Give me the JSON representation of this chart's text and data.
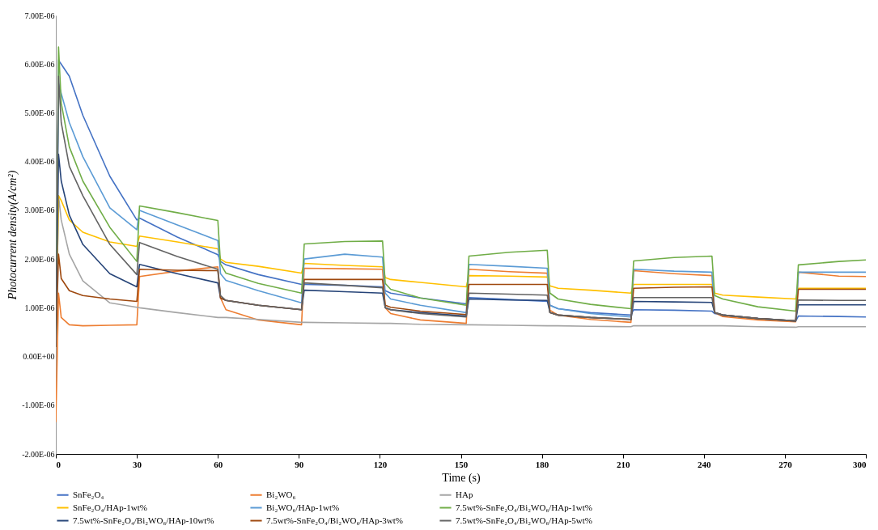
{
  "chart_data": {
    "type": "line",
    "xlabel": "Time (s)",
    "ylabel": "Photocurrent density(A/cm²)",
    "x": [
      0,
      1,
      2,
      5,
      10,
      20,
      30,
      31,
      45,
      60,
      61,
      63,
      75,
      91,
      92,
      107,
      121,
      122,
      124,
      135,
      152,
      153,
      168,
      182,
      183,
      186,
      198,
      213,
      214,
      229,
      243,
      244,
      247,
      260,
      274,
      275,
      290,
      300
    ],
    "xlim": [
      0,
      300
    ],
    "xticks": [
      0,
      30,
      60,
      90,
      120,
      150,
      180,
      210,
      240,
      270,
      300
    ],
    "ylim": [
      -2e-06,
      7e-06
    ],
    "yticks": [
      {
        "value": -2e-06,
        "label": "-2.00E-06"
      },
      {
        "value": -1e-06,
        "label": "-1.00E-06"
      },
      {
        "value": 0,
        "label": "0.00E+00"
      },
      {
        "value": 1e-06,
        "label": "1.00E-06"
      },
      {
        "value": 2e-06,
        "label": "2.00E-06"
      },
      {
        "value": 3e-06,
        "label": "3.00E-06"
      },
      {
        "value": 4e-06,
        "label": "4.00E-06"
      },
      {
        "value": 5e-06,
        "label": "5.00E-06"
      },
      {
        "value": 6e-06,
        "label": "6.00E-06"
      },
      {
        "value": 7e-06,
        "label": "7.00E-06"
      }
    ],
    "grid": false,
    "legend": "bottom",
    "marker": "none",
    "line_style": "solid",
    "series": [
      {
        "name": "SnFe₂O₄",
        "color": "#4472c4",
        "values": [
          2e-07,
          6.08e-06,
          6e-06,
          5.75e-06,
          4.95e-06,
          3.7e-06,
          2.8e-06,
          2.84e-06,
          2.45e-06,
          2.09e-06,
          1.95e-06,
          1.88e-06,
          1.68e-06,
          1.48e-06,
          1.48e-06,
          1.46e-06,
          1.43e-06,
          1.35e-06,
          1.3e-06,
          1.2e-06,
          1.08e-06,
          1.21e-06,
          1.17e-06,
          1.13e-06,
          1.05e-06,
          9.8e-07,
          9e-07,
          8.5e-07,
          9.6e-07,
          9.5e-07,
          9.3e-07,
          8.8e-07,
          8.5e-07,
          7.8e-07,
          7.2e-07,
          8.3e-07,
          8.2e-07,
          8.1e-07
        ]
      },
      {
        "name": "Bi₂WO₆",
        "color": "#ed7d31",
        "values": [
          -1.35e-06,
          1.3e-06,
          8e-07,
          6.5e-07,
          6.3e-07,
          6.4e-07,
          6.5e-07,
          1.64e-06,
          1.75e-06,
          1.84e-06,
          1.2e-06,
          9.6e-07,
          7.5e-07,
          6.5e-07,
          1.81e-06,
          1.8e-06,
          1.79e-06,
          1e-06,
          8.8e-07,
          7.5e-07,
          6.8e-07,
          1.79e-06,
          1.74e-06,
          1.71e-06,
          9.5e-07,
          8.5e-07,
          7.6e-07,
          7e-07,
          1.76e-06,
          1.7e-06,
          1.66e-06,
          9e-07,
          8.2e-07,
          7.5e-07,
          7.1e-07,
          1.73e-06,
          1.65e-06,
          1.64e-06
        ]
      },
      {
        "name": "HAp",
        "color": "#a5a5a5",
        "values": [
          2e-07,
          3.3e-06,
          2.8e-06,
          2.1e-06,
          1.55e-06,
          1.1e-06,
          1.01e-06,
          1e-06,
          9e-07,
          8e-07,
          8e-07,
          8e-07,
          7.6e-07,
          7e-07,
          7e-07,
          6.9e-07,
          6.8e-07,
          6.8e-07,
          6.8e-07,
          6.6e-07,
          6.5e-07,
          6.5e-07,
          6.4e-07,
          6.3e-07,
          6.3e-07,
          6.3e-07,
          6.2e-07,
          6.1e-07,
          6.3e-07,
          6.3e-07,
          6.3e-07,
          6.3e-07,
          6.3e-07,
          6.1e-07,
          6e-07,
          6.1e-07,
          6.1e-07,
          6.1e-07
        ]
      },
      {
        "name": "SnFe₂O₄/HAp-1wt%",
        "color": "#ffc000",
        "values": [
          2e-07,
          3.3e-06,
          3.2e-06,
          2.8e-06,
          2.55e-06,
          2.35e-06,
          2.26e-06,
          2.47e-06,
          2.35e-06,
          2.21e-06,
          2e-06,
          1.93e-06,
          1.85e-06,
          1.71e-06,
          1.91e-06,
          1.87e-06,
          1.84e-06,
          1.62e-06,
          1.58e-06,
          1.52e-06,
          1.43e-06,
          1.66e-06,
          1.65e-06,
          1.63e-06,
          1.45e-06,
          1.4e-06,
          1.36e-06,
          1.3e-06,
          1.48e-06,
          1.48e-06,
          1.48e-06,
          1.3e-06,
          1.26e-06,
          1.22e-06,
          1.18e-06,
          1.4e-06,
          1.4e-06,
          1.4e-06
        ]
      },
      {
        "name": "Bi₂WO₆/HAp-1wt%",
        "color": "#5b9bd5",
        "values": [
          2e-07,
          5.6e-06,
          5.4e-06,
          4.8e-06,
          4.1e-06,
          3.05e-06,
          2.6e-06,
          3e-06,
          2.7e-06,
          2.38e-06,
          1.7e-06,
          1.56e-06,
          1.35e-06,
          1.1e-06,
          2e-06,
          2.1e-06,
          2.04e-06,
          1.3e-06,
          1.18e-06,
          1.05e-06,
          9e-07,
          1.89e-06,
          1.85e-06,
          1.81e-06,
          1.05e-06,
          9.8e-07,
          8.8e-07,
          8.1e-07,
          1.79e-06,
          1.75e-06,
          1.73e-06,
          9e-07,
          8.5e-07,
          7.8e-07,
          7.3e-07,
          1.73e-06,
          1.73e-06,
          1.73e-06
        ]
      },
      {
        "name": "7.5wt%-SnFe₂O₄/Bi₂WO₆/HAp-1wt%",
        "color": "#70ad47",
        "values": [
          2e-07,
          6.35e-06,
          5.2e-06,
          4.3e-06,
          3.6e-06,
          2.65e-06,
          1.95e-06,
          3.09e-06,
          2.95e-06,
          2.79e-06,
          1.9e-06,
          1.71e-06,
          1.5e-06,
          1.3e-06,
          2.31e-06,
          2.36e-06,
          2.37e-06,
          1.5e-06,
          1.38e-06,
          1.2e-06,
          1.05e-06,
          2.06e-06,
          2.14e-06,
          2.18e-06,
          1.3e-06,
          1.18e-06,
          1.07e-06,
          9.8e-07,
          1.96e-06,
          2.03e-06,
          2.06e-06,
          1.25e-06,
          1.18e-06,
          1.02e-06,
          9.3e-07,
          1.88e-06,
          1.95e-06,
          1.98e-06
        ]
      },
      {
        "name": "7.5wt%-SnFe₂O₄/Bi₂WO₆/HAp-10wt%",
        "color": "#264478",
        "values": [
          2e-07,
          4.15e-06,
          3.6e-06,
          2.9e-06,
          2.3e-06,
          1.7e-06,
          1.43e-06,
          1.89e-06,
          1.7e-06,
          1.51e-06,
          1.2e-06,
          1.15e-06,
          1.05e-06,
          9.6e-07,
          1.36e-06,
          1.33e-06,
          1.3e-06,
          1e-06,
          9.6e-07,
          9e-07,
          8.3e-07,
          1.18e-06,
          1.16e-06,
          1.15e-06,
          9e-07,
          8.5e-07,
          8e-07,
          7.6e-07,
          1.13e-06,
          1.12e-06,
          1.11e-06,
          9e-07,
          8.5e-07,
          7.8e-07,
          7.3e-07,
          1.06e-06,
          1.06e-06,
          1.06e-06
        ]
      },
      {
        "name": "7.5wt%-SnFe₂O₄/Bi₂WO₆/HAp-3wt%",
        "color": "#9e480e",
        "values": [
          2e-07,
          2.1e-06,
          1.6e-06,
          1.35e-06,
          1.25e-06,
          1.18e-06,
          1.13e-06,
          1.79e-06,
          1.77e-06,
          1.76e-06,
          1.2e-06,
          1.15e-06,
          1.05e-06,
          9.6e-07,
          1.58e-06,
          1.58e-06,
          1.58e-06,
          1.05e-06,
          1.01e-06,
          9.3e-07,
          8.6e-07,
          1.48e-06,
          1.48e-06,
          1.48e-06,
          9e-07,
          8.5e-07,
          8e-07,
          7.6e-07,
          1.4e-06,
          1.42e-06,
          1.43e-06,
          9e-07,
          8.5e-07,
          7.8e-07,
          7.3e-07,
          1.38e-06,
          1.38e-06,
          1.38e-06
        ]
      },
      {
        "name": "7.5wt%-SnFe₂O₄/Bi₂WO₆/HAp-5wt%",
        "color": "#636363",
        "values": [
          2e-07,
          5.75e-06,
          4.8e-06,
          3.9e-06,
          3.3e-06,
          2.3e-06,
          1.68e-06,
          2.34e-06,
          2.05e-06,
          1.79e-06,
          1.25e-06,
          1.15e-06,
          1.05e-06,
          9.6e-07,
          1.51e-06,
          1.46e-06,
          1.41e-06,
          1e-06,
          9.6e-07,
          8.8e-07,
          8.1e-07,
          1.3e-06,
          1.28e-06,
          1.26e-06,
          9e-07,
          8.5e-07,
          8e-07,
          7.6e-07,
          1.21e-06,
          1.21e-06,
          1.21e-06,
          9e-07,
          8.5e-07,
          7.8e-07,
          7.3e-07,
          1.16e-06,
          1.15e-06,
          1.15e-06
        ]
      }
    ]
  }
}
